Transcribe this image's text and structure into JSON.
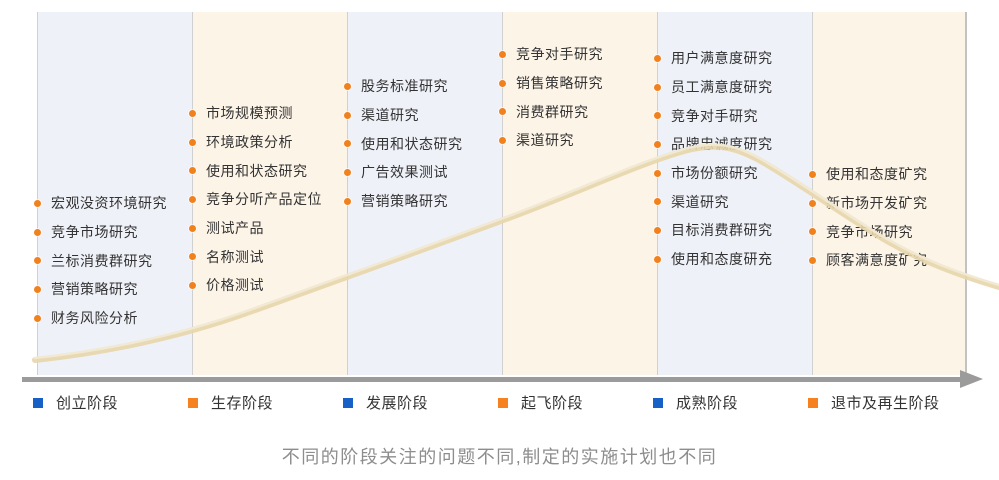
{
  "diagram_title": "",
  "caption": "不同的阶段关注的问题不同,制定的实施计划也不同",
  "colors": {
    "column_bg_blue_gray": "#eef1f8",
    "column_bg_cream": "#fdf4e8",
    "column_divider": "#d0d0d0",
    "bullet_orange": "#f0811c",
    "legend_blue": "#1761c6",
    "legend_orange": "#f5821f",
    "axis_gray": "#9b9b9b",
    "curve_tan": "#e7d6ab",
    "curve_tan_light": "#f2ead5",
    "item_text": "#333333",
    "caption_gray": "#8d8d8d"
  },
  "stages": [
    {
      "label": "创立阶段",
      "legend_color": "#1761c6",
      "bg": "#eef1f8",
      "items": [
        "宏观没资环境研究",
        "竞争市场研究",
        "兰标消费群研究",
        "营销策略研究",
        "财务风险分析"
      ]
    },
    {
      "label": "生存阶段",
      "legend_color": "#f5821f",
      "bg": "#fdf4e8",
      "items": [
        "市场规模预测",
        "环境政策分析",
        "使用和状态研究",
        "竞争分听产品定位",
        "测试产品",
        "名称测试",
        "价格测试"
      ]
    },
    {
      "label": "发展阶段",
      "legend_color": "#1761c6",
      "bg": "#eef1f8",
      "items": [
        "股务标准研究",
        "渠道研究",
        "使用和状态研究",
        "广告效果测试",
        "营销策略研究"
      ]
    },
    {
      "label": "起飞阶段",
      "legend_color": "#f5821f",
      "bg": "#fdf4e8",
      "items": [
        "竞争对手研究",
        "销售策略研究",
        "消费群研究",
        "渠道研究"
      ]
    },
    {
      "label": "成熟阶段",
      "legend_color": "#1761c6",
      "bg": "#eef1f8",
      "items": [
        "用户满意度研究",
        "员工满意度研究",
        "竞争对手研究",
        "品牌忠诚度研究",
        "市场份额研究",
        "渠道研究",
        "目标消费群研究",
        "使用和态度研充"
      ]
    },
    {
      "label": "退市及再生阶段",
      "legend_color": "#f5821f",
      "bg": "#fdf4e8",
      "items": [
        "使用和态度矿究",
        "新市场开发矿究",
        "竞争市场研究",
        "顾客满意度矿究"
      ]
    }
  ]
}
